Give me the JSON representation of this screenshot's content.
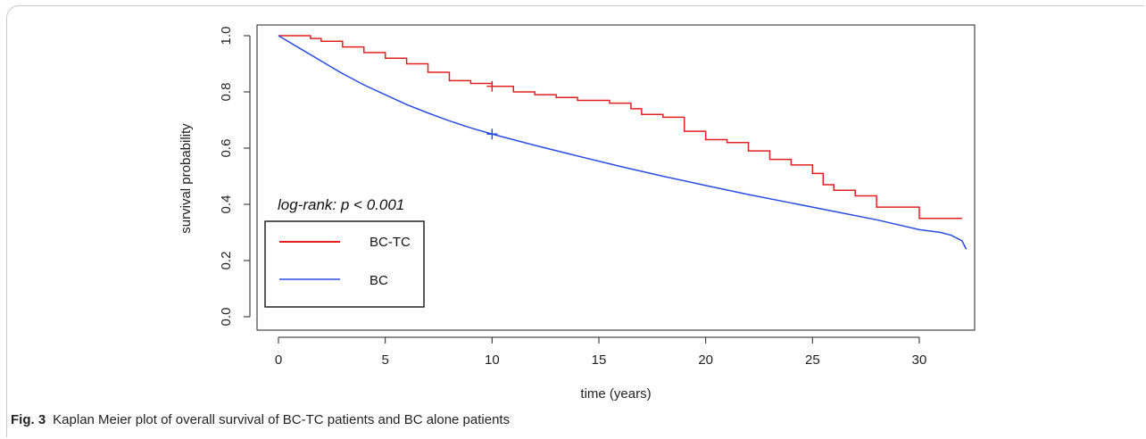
{
  "caption": {
    "figure_label": "Fig. 3",
    "text": "Kaplan Meier plot of overall survival of BC-TC patients and BC alone patients"
  },
  "chart_data": {
    "type": "line",
    "title": "",
    "xlabel": "time (years)",
    "ylabel": "survival probability",
    "xlim": [
      0,
      33
    ],
    "ylim": [
      0,
      1.05
    ],
    "x_ticks": [
      0,
      5,
      10,
      15,
      20,
      25,
      30
    ],
    "y_ticks": [
      0.0,
      0.2,
      0.4,
      0.6,
      0.8,
      1.0
    ],
    "y_tick_labels": [
      "0.0",
      "0.2",
      "0.4",
      "0.6",
      "0.8",
      "1.0"
    ],
    "grid": false,
    "legend_placement": "bottom-left",
    "annotation": "log-rank: p < 0.001",
    "series": [
      {
        "name": "BC-TC",
        "color": "#e02020",
        "style": "step",
        "censor_marks": [
          [
            10,
            0.82
          ]
        ],
        "points": [
          [
            0,
            1.0
          ],
          [
            1.5,
            0.99
          ],
          [
            2.0,
            0.98
          ],
          [
            3.0,
            0.96
          ],
          [
            4.0,
            0.94
          ],
          [
            5.0,
            0.92
          ],
          [
            6.0,
            0.9
          ],
          [
            7.0,
            0.87
          ],
          [
            8.0,
            0.84
          ],
          [
            9.0,
            0.83
          ],
          [
            10.0,
            0.82
          ],
          [
            11.0,
            0.8
          ],
          [
            12.0,
            0.79
          ],
          [
            13.0,
            0.78
          ],
          [
            14.0,
            0.77
          ],
          [
            15.5,
            0.76
          ],
          [
            16.5,
            0.74
          ],
          [
            17.0,
            0.72
          ],
          [
            18.0,
            0.71
          ],
          [
            19.0,
            0.66
          ],
          [
            20.0,
            0.63
          ],
          [
            21.0,
            0.62
          ],
          [
            22.0,
            0.59
          ],
          [
            23.0,
            0.56
          ],
          [
            24.0,
            0.54
          ],
          [
            25.0,
            0.51
          ],
          [
            25.5,
            0.47
          ],
          [
            26.0,
            0.45
          ],
          [
            27.0,
            0.43
          ],
          [
            28.0,
            0.39
          ],
          [
            30.0,
            0.35
          ],
          [
            32.0,
            0.35
          ]
        ]
      },
      {
        "name": "BC",
        "color": "#2a4de0",
        "style": "smooth",
        "censor_marks": [
          [
            10,
            0.65
          ]
        ],
        "points": [
          [
            0,
            1.0
          ],
          [
            1,
            0.955
          ],
          [
            2,
            0.91
          ],
          [
            3,
            0.865
          ],
          [
            4,
            0.825
          ],
          [
            5,
            0.79
          ],
          [
            6,
            0.755
          ],
          [
            7,
            0.725
          ],
          [
            8,
            0.697
          ],
          [
            9,
            0.672
          ],
          [
            10,
            0.65
          ],
          [
            12,
            0.61
          ],
          [
            14,
            0.572
          ],
          [
            16,
            0.535
          ],
          [
            18,
            0.5
          ],
          [
            20,
            0.467
          ],
          [
            22,
            0.435
          ],
          [
            24,
            0.405
          ],
          [
            26,
            0.375
          ],
          [
            28,
            0.345
          ],
          [
            30,
            0.31
          ],
          [
            31,
            0.3
          ],
          [
            31.5,
            0.29
          ],
          [
            32,
            0.27
          ],
          [
            32.2,
            0.24
          ]
        ]
      }
    ]
  }
}
